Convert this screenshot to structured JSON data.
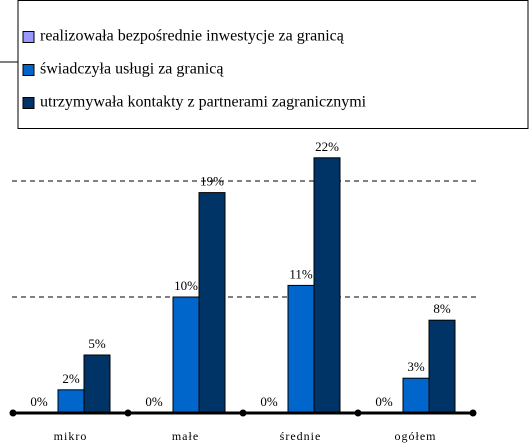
{
  "chart_data": {
    "type": "bar",
    "categories": [
      "mikro",
      "małe",
      "średnie",
      "ogółem"
    ],
    "series": [
      {
        "name": "realizowała bezpośrednie inwestycje za granicą",
        "color": "#9999ff",
        "values": [
          0,
          0,
          0,
          0
        ],
        "value_labels": [
          "0%",
          "0%",
          "0%",
          "0%"
        ]
      },
      {
        "name": "świadczyła usługi za granicą",
        "color": "#0066cc",
        "values": [
          2,
          10,
          11,
          3
        ],
        "value_labels": [
          "2%",
          "10%",
          "11%",
          "3%"
        ]
      },
      {
        "name": "utrzymywała kontakty z partnerami zagranicznymi",
        "color": "#003366",
        "values": [
          5,
          19,
          22,
          8
        ],
        "value_labels": [
          "5%",
          "19%",
          "22%",
          "8%"
        ]
      }
    ],
    "ylim": [
      0,
      25
    ],
    "yticks": [
      10,
      20
    ],
    "grid": true
  }
}
